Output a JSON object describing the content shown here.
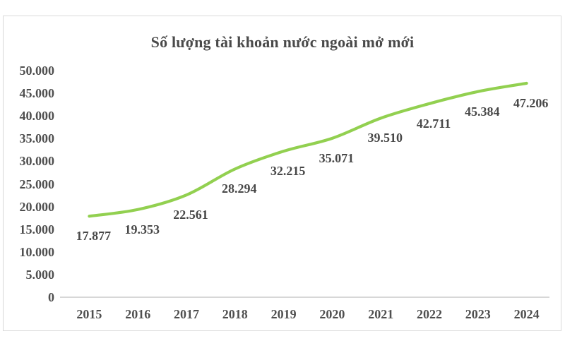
{
  "chart_data": {
    "type": "line",
    "title": "Số lượng tài khoản nước ngoài mở mới",
    "categories": [
      "2015",
      "2016",
      "2017",
      "2018",
      "2019",
      "2020",
      "2021",
      "2022",
      "2023",
      "2024"
    ],
    "values": [
      17877,
      19353,
      22561,
      28294,
      32215,
      35071,
      39510,
      42711,
      45384,
      47206
    ],
    "value_labels": [
      "17.877",
      "19.353",
      "22.561",
      "28.294",
      "32.215",
      "35.071",
      "39.510",
      "42.711",
      "45.384",
      "47.206"
    ],
    "ytick_labels": [
      "0",
      "5.000",
      "10.000",
      "15.000",
      "20.000",
      "25.000",
      "30.000",
      "35.000",
      "40.000",
      "45.000",
      "50.000"
    ],
    "ytick_interval": 5000,
    "ylim": [
      0,
      50000
    ],
    "xlabel": "",
    "ylabel": "",
    "grid": false,
    "legend": "none",
    "smooth": true,
    "line_color": "#92d050",
    "axis_line_color": "#bfbfbf",
    "text_color": "#4f4f4f",
    "border_color": "#d9d9d9"
  }
}
